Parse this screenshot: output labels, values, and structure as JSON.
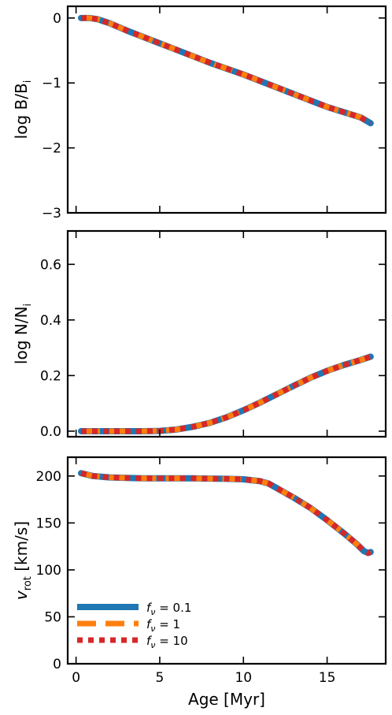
{
  "chart_data": [
    {
      "type": "line",
      "ylabel": "log B/B",
      "ylabel_sub": "i",
      "xlim": [
        -0.5,
        18.5
      ],
      "ylim": [
        -3,
        0.18
      ],
      "yticks": [
        0,
        -1,
        -2,
        -3
      ],
      "yticklabels": [
        "0",
        "−1",
        "−2",
        "−3"
      ],
      "xticks": [
        0,
        5,
        10,
        15
      ],
      "series": [
        {
          "name": "fν = 0.1",
          "x": [
            0.3,
            0.8,
            1.3,
            2,
            3,
            4,
            5,
            6,
            7,
            8,
            9,
            10,
            11,
            12,
            13,
            14,
            15,
            16,
            17,
            17.6
          ],
          "y": [
            0,
            0,
            -0.02,
            -0.08,
            -0.19,
            -0.29,
            -0.39,
            -0.49,
            -0.59,
            -0.69,
            -0.78,
            -0.87,
            -0.97,
            -1.07,
            -1.17,
            -1.27,
            -1.37,
            -1.45,
            -1.53,
            -1.62
          ]
        },
        {
          "name": "fν = 1",
          "x": [
            0.3,
            0.8,
            1.3,
            2,
            3,
            4,
            5,
            6,
            7,
            8,
            9,
            10,
            11,
            12,
            13,
            14,
            15,
            16,
            17,
            17.6
          ],
          "y": [
            0,
            0,
            -0.02,
            -0.08,
            -0.19,
            -0.29,
            -0.39,
            -0.49,
            -0.59,
            -0.69,
            -0.78,
            -0.87,
            -0.97,
            -1.07,
            -1.17,
            -1.27,
            -1.37,
            -1.45,
            -1.53,
            -1.62
          ]
        },
        {
          "name": "fν = 10",
          "x": [
            0.3,
            0.8,
            1.3,
            2,
            3,
            4,
            5,
            6,
            7,
            8,
            9,
            10,
            11,
            12,
            13,
            14,
            15,
            16,
            17,
            17.6
          ],
          "y": [
            0,
            0,
            -0.02,
            -0.08,
            -0.19,
            -0.29,
            -0.39,
            -0.49,
            -0.59,
            -0.69,
            -0.78,
            -0.87,
            -0.97,
            -1.07,
            -1.17,
            -1.27,
            -1.37,
            -1.45,
            -1.53,
            -1.62
          ]
        }
      ]
    },
    {
      "type": "line",
      "ylabel": "log N/N",
      "ylabel_sub": "i",
      "xlim": [
        -0.5,
        18.5
      ],
      "ylim": [
        -0.02,
        0.72
      ],
      "yticks": [
        0,
        0.2,
        0.4,
        0.6
      ],
      "yticklabels": [
        "0.0",
        "0.2",
        "0.4",
        "0.6"
      ],
      "xticks": [
        0,
        5,
        10,
        15
      ],
      "series": [
        {
          "name": "fν = 0.1",
          "x": [
            0.3,
            1,
            2,
            3,
            4,
            5,
            6,
            7,
            8,
            9,
            10,
            11,
            12,
            13,
            14,
            15,
            16,
            17,
            17.6
          ],
          "y": [
            0,
            0,
            0,
            0,
            0,
            0.001,
            0.006,
            0.016,
            0.03,
            0.05,
            0.075,
            0.103,
            0.133,
            0.163,
            0.192,
            0.217,
            0.238,
            0.256,
            0.268
          ]
        },
        {
          "name": "fν = 1",
          "x": [
            0.3,
            1,
            2,
            3,
            4,
            5,
            6,
            7,
            8,
            9,
            10,
            11,
            12,
            13,
            14,
            15,
            16,
            17,
            17.6
          ],
          "y": [
            0,
            0,
            0,
            0,
            0,
            0.001,
            0.006,
            0.016,
            0.03,
            0.05,
            0.075,
            0.103,
            0.133,
            0.163,
            0.192,
            0.217,
            0.238,
            0.256,
            0.268
          ]
        },
        {
          "name": "fν = 10",
          "x": [
            0.3,
            1,
            2,
            3,
            4,
            5,
            6,
            7,
            8,
            9,
            10,
            11,
            12,
            13,
            14,
            15,
            16,
            17,
            17.6
          ],
          "y": [
            0,
            0,
            0,
            0,
            0,
            0.001,
            0.006,
            0.016,
            0.03,
            0.05,
            0.075,
            0.103,
            0.133,
            0.163,
            0.192,
            0.217,
            0.238,
            0.256,
            0.268
          ]
        }
      ]
    },
    {
      "type": "line",
      "ylabel": "v",
      "ylabel_sub": "rot",
      "ylabel_rest": " [km/s]",
      "xlabel": "Age [Myr]",
      "xlim": [
        -0.5,
        18.5
      ],
      "ylim": [
        0,
        220
      ],
      "yticks": [
        0,
        50,
        100,
        150,
        200
      ],
      "yticklabels": [
        "0",
        "50",
        "100",
        "150",
        "200"
      ],
      "xticks": [
        0,
        5,
        10,
        15
      ],
      "xticklabels": [
        "0",
        "5",
        "10",
        "15"
      ],
      "legend": {
        "placement": "lower-left",
        "entries": [
          {
            "prefix": "f",
            "sub": "ν",
            "value": " = 0.1"
          },
          {
            "prefix": "f",
            "sub": "ν",
            "value": " = 1"
          },
          {
            "prefix": "f",
            "sub": "ν",
            "value": " = 10"
          }
        ]
      },
      "series": [
        {
          "name": "fν = 0.1",
          "x": [
            0.3,
            1,
            2,
            3,
            4,
            5,
            6,
            7,
            8,
            9,
            10,
            11,
            11.5,
            12,
            13,
            14,
            15,
            16,
            16.8,
            17.2,
            17.45,
            17.6
          ],
          "y": [
            203,
            200,
            198.5,
            198,
            197.5,
            197.5,
            197.5,
            197.5,
            197.2,
            197,
            196.5,
            194.5,
            192,
            187,
            177,
            166,
            153,
            139,
            127,
            120,
            118,
            119
          ]
        },
        {
          "name": "fν = 1",
          "x": [
            0.3,
            1,
            2,
            3,
            4,
            5,
            6,
            7,
            8,
            9,
            10,
            11,
            11.5,
            12,
            13,
            14,
            15,
            16,
            16.8,
            17.2,
            17.45,
            17.6
          ],
          "y": [
            203,
            200,
            198.5,
            198,
            197.5,
            197.5,
            197.5,
            197.5,
            197.2,
            197,
            196.5,
            194.5,
            192,
            187,
            177,
            166,
            153,
            139,
            127,
            120,
            118,
            119
          ]
        },
        {
          "name": "fν = 10",
          "x": [
            0.3,
            1,
            2,
            3,
            4,
            5,
            6,
            7,
            8,
            9,
            10,
            11,
            11.5,
            12,
            13,
            14,
            15,
            16,
            16.8,
            17.2,
            17.45,
            17.6
          ],
          "y": [
            203,
            200,
            198.5,
            198,
            197.5,
            197.5,
            197.5,
            197.5,
            197.2,
            197,
            196.5,
            194.5,
            192,
            187,
            177,
            166,
            153,
            139,
            127,
            120,
            118,
            119
          ]
        }
      ]
    }
  ],
  "colors": {
    "series_0": "#1f77b4",
    "series_1": "#ff7f0e",
    "series_2": "#d62728"
  }
}
